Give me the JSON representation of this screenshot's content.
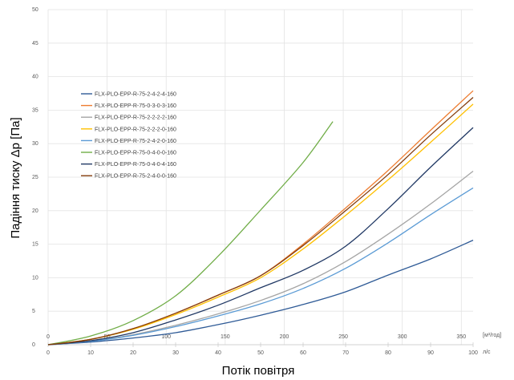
{
  "chart_data": {
    "type": "line",
    "ylabel": "Падіння тиску Δp [Па]",
    "xlabel": "Потік повітря",
    "ylim": [
      0,
      50
    ],
    "yticks": [
      0,
      5,
      10,
      15,
      20,
      25,
      30,
      35,
      40,
      45,
      50
    ],
    "x_ls": {
      "unit": "л/с",
      "range": [
        0,
        100
      ],
      "ticks": [
        0,
        10,
        20,
        30,
        40,
        50,
        60,
        70,
        80,
        90,
        100
      ]
    },
    "x_m3h": {
      "unit": "[м³/год]",
      "ticks": [
        0,
        50,
        100,
        150,
        200,
        250,
        300,
        350
      ]
    },
    "grid": true,
    "legend_position": "left",
    "series": [
      {
        "name": "FLX-PLO-EPP-R-75-2-4-2-4-160",
        "color": "#2e5a96",
        "x": [
          0,
          10,
          20,
          30,
          40,
          50,
          60,
          70,
          80,
          90,
          100
        ],
        "y": [
          0,
          0.4,
          1.0,
          1.8,
          3.0,
          4.4,
          6.0,
          7.9,
          10.4,
          12.8,
          15.6
        ]
      },
      {
        "name": "FLX-PLO-EPP-R-75-0-3-0-3-160",
        "color": "#ed7d31",
        "x": [
          0,
          10,
          20,
          30,
          40,
          50,
          60,
          70,
          80,
          90,
          100
        ],
        "y": [
          0,
          0.8,
          2.4,
          4.7,
          7.4,
          10.3,
          15.0,
          20.4,
          26.0,
          32.0,
          37.9
        ]
      },
      {
        "name": "FLX-PLO-EPP-R-75-2-2-2-2-160",
        "color": "#a5a5a5",
        "x": [
          0,
          10,
          20,
          30,
          40,
          50,
          60,
          70,
          80,
          90,
          100
        ],
        "y": [
          0,
          0.5,
          1.5,
          2.9,
          4.6,
          6.6,
          9.1,
          12.4,
          16.5,
          21.0,
          25.9
        ]
      },
      {
        "name": "FLX-PLO-EPP-R-75-2-2-2-0-160",
        "color": "#ffc000",
        "x": [
          0,
          10,
          20,
          30,
          40,
          50,
          60,
          70,
          80,
          90,
          100
        ],
        "y": [
          0,
          0.8,
          2.3,
          4.5,
          7.1,
          10.0,
          14.3,
          19.3,
          24.6,
          30.2,
          35.9
        ]
      },
      {
        "name": "FLX-PLO-EPP-R-75-2-4-2-0-160",
        "color": "#5b9bd5",
        "x": [
          0,
          10,
          20,
          30,
          40,
          50,
          60,
          70,
          80,
          90,
          100
        ],
        "y": [
          0,
          0.5,
          1.4,
          2.7,
          4.3,
          6.1,
          8.4,
          11.4,
          15.2,
          19.4,
          23.4
        ]
      },
      {
        "name": "FLX-PLO-EPP-R-75-0-4-0-0-160",
        "color": "#70ad47",
        "x": [
          0,
          10,
          20,
          30,
          40,
          50,
          60,
          67
        ],
        "y": [
          0,
          1.3,
          3.6,
          7.3,
          13.2,
          20.1,
          27.2,
          33.3
        ]
      },
      {
        "name": "FLX-PLO-EPP-R-75-0-4-0-4-160",
        "color": "#203864",
        "x": [
          0,
          10,
          20,
          30,
          40,
          50,
          60,
          70,
          80,
          90,
          100
        ],
        "y": [
          0,
          0.6,
          1.8,
          3.7,
          5.9,
          8.5,
          11.1,
          14.7,
          20.3,
          26.5,
          32.4
        ]
      },
      {
        "name": "FLX-PLO-EPP-R-75-2-4-0-0-160",
        "color": "#843c0c",
        "x": [
          0,
          10,
          20,
          30,
          40,
          50,
          60,
          70,
          80,
          90,
          100
        ],
        "y": [
          0,
          0.8,
          2.4,
          4.7,
          7.4,
          10.3,
          14.8,
          20.0,
          25.4,
          31.3,
          36.9
        ]
      }
    ]
  }
}
